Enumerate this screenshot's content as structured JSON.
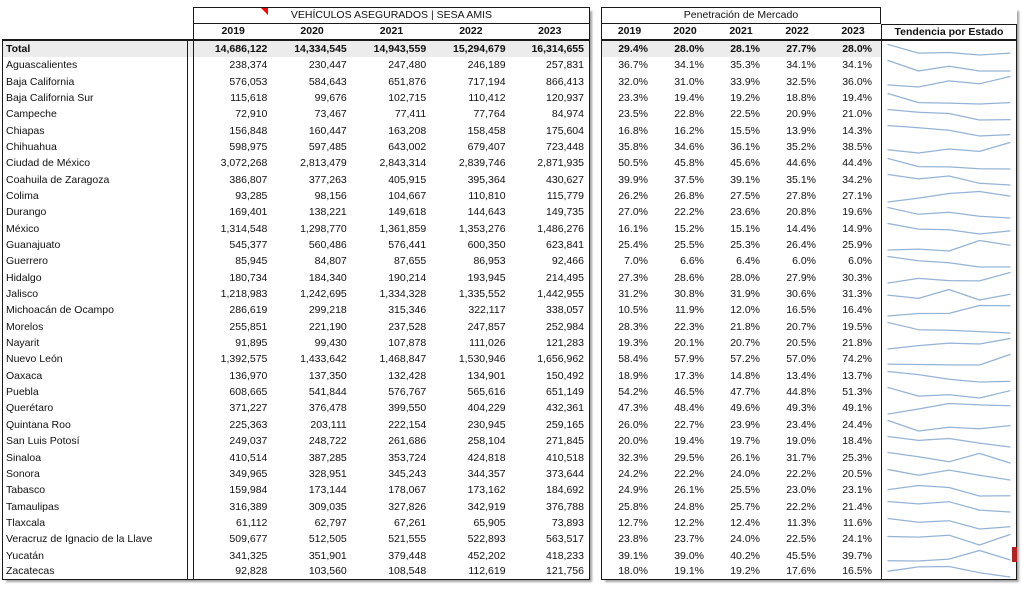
{
  "left_table": {
    "title": "VEHÍCULOS ASEGURADOS | SESA AMIS",
    "years": [
      "2019",
      "2020",
      "2021",
      "2022",
      "2023"
    ]
  },
  "right_table": {
    "title": "Penetración de Mercado",
    "years": [
      "2019",
      "2020",
      "2021",
      "2022",
      "2023"
    ],
    "trend_header": "Tendencia por Estado"
  },
  "total": {
    "label": "Total",
    "insured": [
      "14,686,122",
      "14,334,545",
      "14,943,559",
      "15,294,679",
      "16,314,655"
    ],
    "penetration": [
      "29.4%",
      "28.0%",
      "28.1%",
      "27.7%",
      "28.0%"
    ]
  },
  "states": [
    {
      "label": "Aguascalientes",
      "insured": [
        "238,374",
        "230,447",
        "247,480",
        "246,189",
        "257,831"
      ],
      "penetration": [
        "36.7%",
        "34.1%",
        "35.3%",
        "34.1%",
        "34.1%"
      ]
    },
    {
      "label": "Baja California",
      "insured": [
        "576,053",
        "584,643",
        "651,876",
        "717,194",
        "866,413"
      ],
      "penetration": [
        "32.0%",
        "31.0%",
        "33.9%",
        "32.5%",
        "36.0%"
      ]
    },
    {
      "label": "Baja California Sur",
      "insured": [
        "115,618",
        "99,676",
        "102,715",
        "110,412",
        "120,937"
      ],
      "penetration": [
        "23.3%",
        "19.4%",
        "19.2%",
        "18.8%",
        "19.4%"
      ]
    },
    {
      "label": "Campeche",
      "insured": [
        "72,910",
        "73,467",
        "77,411",
        "77,764",
        "84,974"
      ],
      "penetration": [
        "23.5%",
        "22.8%",
        "22.5%",
        "20.9%",
        "21.0%"
      ]
    },
    {
      "label": "Chiapas",
      "insured": [
        "156,848",
        "160,447",
        "163,208",
        "158,458",
        "175,604"
      ],
      "penetration": [
        "16.8%",
        "16.2%",
        "15.5%",
        "13.9%",
        "14.3%"
      ]
    },
    {
      "label": "Chihuahua",
      "insured": [
        "598,975",
        "597,485",
        "643,002",
        "679,407",
        "723,448"
      ],
      "penetration": [
        "35.8%",
        "34.6%",
        "36.1%",
        "35.2%",
        "38.5%"
      ]
    },
    {
      "label": "Ciudad de México",
      "insured": [
        "3,072,268",
        "2,813,479",
        "2,843,314",
        "2,839,746",
        "2,871,935"
      ],
      "penetration": [
        "50.5%",
        "45.8%",
        "45.6%",
        "44.6%",
        "44.4%"
      ]
    },
    {
      "label": "Coahuila de Zaragoza",
      "insured": [
        "386,807",
        "377,263",
        "405,915",
        "395,364",
        "430,627"
      ],
      "penetration": [
        "39.9%",
        "37.5%",
        "39.1%",
        "35.1%",
        "34.2%"
      ]
    },
    {
      "label": "Colima",
      "insured": [
        "93,285",
        "98,156",
        "104,667",
        "110,810",
        "115,779"
      ],
      "penetration": [
        "26.2%",
        "26.8%",
        "27.5%",
        "27.8%",
        "27.1%"
      ]
    },
    {
      "label": "Durango",
      "insured": [
        "169,401",
        "138,221",
        "149,618",
        "144,643",
        "149,735"
      ],
      "penetration": [
        "27.0%",
        "22.2%",
        "23.6%",
        "20.8%",
        "19.6%"
      ]
    },
    {
      "label": "México",
      "insured": [
        "1,314,548",
        "1,298,770",
        "1,361,859",
        "1,353,276",
        "1,486,276"
      ],
      "penetration": [
        "16.1%",
        "15.2%",
        "15.1%",
        "14.4%",
        "14.9%"
      ]
    },
    {
      "label": "Guanajuato",
      "insured": [
        "545,377",
        "560,486",
        "576,441",
        "600,350",
        "623,841"
      ],
      "penetration": [
        "25.4%",
        "25.5%",
        "25.3%",
        "26.4%",
        "25.9%"
      ]
    },
    {
      "label": "Guerrero",
      "insured": [
        "85,945",
        "84,807",
        "87,655",
        "86,953",
        "92,466"
      ],
      "penetration": [
        "7.0%",
        "6.6%",
        "6.4%",
        "6.0%",
        "6.0%"
      ]
    },
    {
      "label": "Hidalgo",
      "insured": [
        "180,734",
        "184,340",
        "190,214",
        "193,945",
        "214,495"
      ],
      "penetration": [
        "27.3%",
        "28.6%",
        "28.0%",
        "27.9%",
        "30.3%"
      ]
    },
    {
      "label": "Jalisco",
      "insured": [
        "1,218,983",
        "1,242,695",
        "1,334,328",
        "1,335,552",
        "1,442,955"
      ],
      "penetration": [
        "31.2%",
        "30.8%",
        "31.9%",
        "30.6%",
        "31.3%"
      ]
    },
    {
      "label": "Michoacán de Ocampo",
      "insured": [
        "286,619",
        "299,218",
        "315,346",
        "322,117",
        "338,057"
      ],
      "penetration": [
        "10.5%",
        "11.9%",
        "12.0%",
        "16.5%",
        "16.4%"
      ]
    },
    {
      "label": "Morelos",
      "insured": [
        "255,851",
        "221,190",
        "237,528",
        "247,857",
        "252,984"
      ],
      "penetration": [
        "28.3%",
        "22.3%",
        "21.8%",
        "20.7%",
        "19.5%"
      ]
    },
    {
      "label": "Nayarit",
      "insured": [
        "91,895",
        "99,430",
        "107,878",
        "111,026",
        "121,283"
      ],
      "penetration": [
        "19.3%",
        "20.1%",
        "20.7%",
        "20.5%",
        "21.8%"
      ]
    },
    {
      "label": "Nuevo León",
      "insured": [
        "1,392,575",
        "1,433,642",
        "1,468,847",
        "1,530,946",
        "1,656,962"
      ],
      "penetration": [
        "58.4%",
        "57.9%",
        "57.2%",
        "57.0%",
        "74.2%"
      ]
    },
    {
      "label": "Oaxaca",
      "insured": [
        "136,970",
        "137,350",
        "132,428",
        "134,901",
        "150,492"
      ],
      "penetration": [
        "18.9%",
        "17.3%",
        "14.8%",
        "13.4%",
        "13.7%"
      ]
    },
    {
      "label": "Puebla",
      "insured": [
        "608,665",
        "541,844",
        "576,767",
        "565,616",
        "651,149"
      ],
      "penetration": [
        "54.2%",
        "46.5%",
        "47.7%",
        "44.8%",
        "51.3%"
      ]
    },
    {
      "label": "Querétaro",
      "insured": [
        "371,227",
        "376,478",
        "399,550",
        "404,229",
        "432,361"
      ],
      "penetration": [
        "47.3%",
        "48.4%",
        "49.6%",
        "49.3%",
        "49.1%"
      ]
    },
    {
      "label": "Quintana Roo",
      "insured": [
        "225,363",
        "203,111",
        "222,154",
        "230,945",
        "259,165"
      ],
      "penetration": [
        "26.0%",
        "22.7%",
        "23.9%",
        "23.4%",
        "24.4%"
      ]
    },
    {
      "label": "San Luis Potosí",
      "insured": [
        "249,037",
        "248,722",
        "261,686",
        "258,104",
        "271,845"
      ],
      "penetration": [
        "20.0%",
        "19.4%",
        "19.7%",
        "19.0%",
        "18.4%"
      ]
    },
    {
      "label": "Sinaloa",
      "insured": [
        "410,514",
        "387,285",
        "353,724",
        "424,818",
        "410,518"
      ],
      "penetration": [
        "32.3%",
        "29.5%",
        "26.1%",
        "31.7%",
        "25.3%"
      ]
    },
    {
      "label": "Sonora",
      "insured": [
        "349,965",
        "328,951",
        "345,243",
        "344,357",
        "373,644"
      ],
      "penetration": [
        "24.2%",
        "22.2%",
        "24.0%",
        "22.2%",
        "20.5%"
      ]
    },
    {
      "label": "Tabasco",
      "insured": [
        "159,984",
        "173,144",
        "178,067",
        "173,162",
        "184,692"
      ],
      "penetration": [
        "24.9%",
        "26.1%",
        "25.5%",
        "23.0%",
        "23.1%"
      ]
    },
    {
      "label": "Tamaulipas",
      "insured": [
        "316,389",
        "309,035",
        "327,826",
        "342,919",
        "376,788"
      ],
      "penetration": [
        "25.8%",
        "24.8%",
        "25.7%",
        "22.2%",
        "21.4%"
      ]
    },
    {
      "label": "Tlaxcala",
      "insured": [
        "61,112",
        "62,797",
        "67,261",
        "65,905",
        "73,893"
      ],
      "penetration": [
        "12.7%",
        "12.2%",
        "12.4%",
        "11.3%",
        "11.6%"
      ]
    },
    {
      "label": "Veracruz de Ignacio de la Llave",
      "insured": [
        "509,677",
        "512,505",
        "521,555",
        "522,893",
        "563,517"
      ],
      "penetration": [
        "23.8%",
        "23.7%",
        "24.0%",
        "22.5%",
        "24.1%"
      ]
    },
    {
      "label": "Yucatán",
      "insured": [
        "341,325",
        "351,901",
        "379,448",
        "452,202",
        "418,233"
      ],
      "penetration": [
        "39.1%",
        "39.0%",
        "40.2%",
        "45.5%",
        "39.7%"
      ]
    },
    {
      "label": "Zacatecas",
      "insured": [
        "92,828",
        "103,560",
        "108,548",
        "112,619",
        "121,756"
      ],
      "penetration": [
        "18.0%",
        "19.1%",
        "19.2%",
        "17.6%",
        "16.5%"
      ]
    }
  ],
  "colors": {
    "sparkline": "#95b3d7",
    "total_row_bg": "#ececec",
    "comment_marker": "#ff0000",
    "row_flag_marker": "#b22222",
    "border": "#1a1a1a"
  }
}
